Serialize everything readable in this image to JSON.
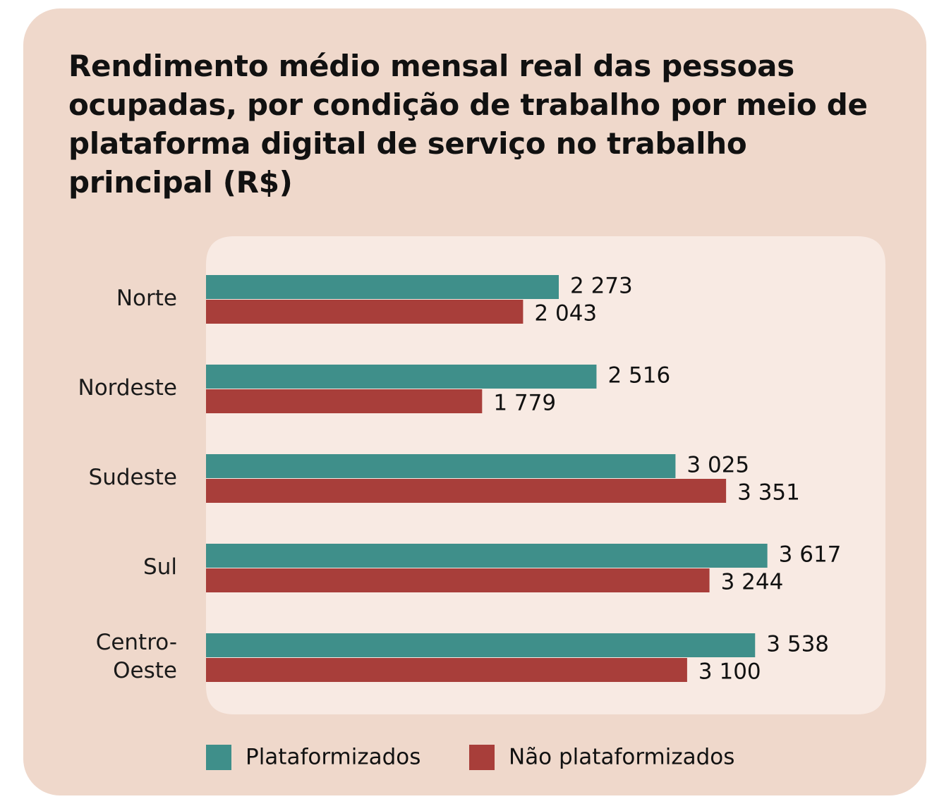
{
  "chart_data": {
    "type": "bar",
    "orientation": "horizontal",
    "title": "Rendimento médio mensal real das pessoas ocupadas, por condição de trabalho por meio de plataforma digital de serviço no trabalho principal (R$)",
    "categories": [
      "Norte",
      "Nordeste",
      "Sudeste",
      "Sul",
      "Centro-Oeste"
    ],
    "category_lines": [
      [
        "Norte"
      ],
      [
        "Nordeste"
      ],
      [
        "Sudeste"
      ],
      [
        "Sul"
      ],
      [
        "Centro-",
        "Oeste"
      ]
    ],
    "series": [
      {
        "name": "Plataformizados",
        "color": "#3F8F8A",
        "values": [
          2273,
          2516,
          3025,
          3617,
          3538
        ],
        "labels": [
          "2 273",
          "2 516",
          "3 025",
          "3 617",
          "3 538"
        ]
      },
      {
        "name": "Não plataformizados",
        "color": "#A83E3A",
        "values": [
          2043,
          1779,
          3351,
          3244,
          3100
        ],
        "labels": [
          "2 043",
          "1 779",
          "3 351",
          "3 244",
          "3 100"
        ]
      }
    ],
    "xlim": [
      0,
      4000
    ],
    "grid": false,
    "axes_visible": false,
    "legend_position": "bottom",
    "background_color": "#EFD8CB",
    "panel_color": "#F8EAE3"
  }
}
